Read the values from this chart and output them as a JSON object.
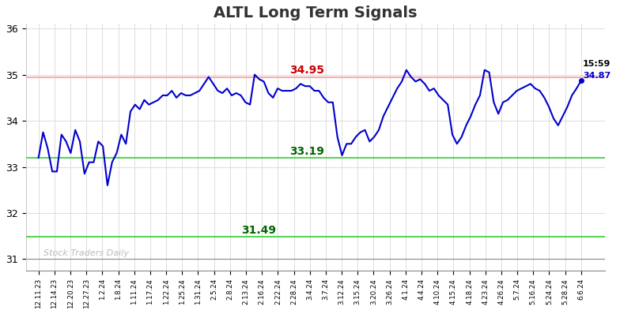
{
  "title": "ALTL Long Term Signals",
  "title_fontsize": 14,
  "title_color": "#333333",
  "background_color": "#ffffff",
  "line_color": "#0000cc",
  "line_width": 1.5,
  "hline_red_value": 34.95,
  "hline_red_color": "#ffaaaa",
  "hline_green1_value": 33.19,
  "hline_green1_color": "#33cc33",
  "hline_green2_value": 31.49,
  "hline_green2_color": "#33cc33",
  "watermark": "Stock Traders Daily",
  "watermark_color": "#bbbbbb",
  "label_34_95": "34.95",
  "label_33_19": "33.19",
  "label_31_49": "31.49",
  "label_red_color": "#cc0000",
  "label_green_color": "#006600",
  "end_label_time": "15:59",
  "end_label_price": "34.87",
  "end_label_color": "#0000cc",
  "end_label_time_color": "#000000",
  "ylim": [
    30.75,
    36.1
  ],
  "yticks": [
    31,
    32,
    33,
    34,
    35,
    36
  ],
  "x_labels": [
    "12.11.23",
    "12.14.23",
    "12.20.23",
    "12.27.23",
    "1.2.24",
    "1.8.24",
    "1.11.24",
    "1.17.24",
    "1.22.24",
    "1.25.24",
    "1.31.24",
    "2.5.24",
    "2.8.24",
    "2.13.24",
    "2.16.24",
    "2.22.24",
    "2.28.24",
    "3.4.24",
    "3.7.24",
    "3.12.24",
    "3.15.24",
    "3.20.24",
    "3.26.24",
    "4.1.24",
    "4.4.24",
    "4.10.24",
    "4.15.24",
    "4.18.24",
    "4.23.24",
    "4.26.24",
    "5.7.24",
    "5.16.24",
    "5.24.24",
    "5.28.24",
    "6.6.24"
  ],
  "y_values": [
    33.2,
    33.75,
    33.4,
    32.9,
    32.9,
    33.7,
    33.55,
    33.3,
    33.8,
    33.55,
    32.85,
    33.1,
    33.1,
    33.55,
    33.45,
    32.6,
    33.1,
    33.3,
    33.7,
    33.5,
    34.2,
    34.35,
    34.25,
    34.45,
    34.35,
    34.4,
    34.45,
    34.55,
    34.55,
    34.65,
    34.5,
    34.6,
    34.55,
    34.55,
    34.6,
    34.65,
    34.8,
    34.95,
    34.8,
    34.65,
    34.6,
    34.7,
    34.55,
    34.6,
    34.55,
    34.4,
    34.35,
    35.0,
    34.9,
    34.85,
    34.6,
    34.5,
    34.7,
    34.65,
    34.65,
    34.65,
    34.7,
    34.8,
    34.75,
    34.75,
    34.65,
    34.65,
    34.5,
    34.4,
    34.4,
    33.65,
    33.25,
    33.5,
    33.5,
    33.65,
    33.75,
    33.8,
    33.55,
    33.65,
    33.8,
    34.1,
    34.3,
    34.5,
    34.7,
    34.85,
    35.1,
    34.95,
    34.85,
    34.9,
    34.8,
    34.65,
    34.7,
    34.55,
    34.45,
    34.35,
    33.7,
    33.5,
    33.65,
    33.9,
    34.1,
    34.35,
    34.55,
    35.1,
    35.05,
    34.4,
    34.15,
    34.4,
    34.45,
    34.55,
    34.65,
    34.7,
    34.75,
    34.8,
    34.7,
    34.65,
    34.5,
    34.3,
    34.05,
    33.9,
    34.1,
    34.3,
    34.55,
    34.7,
    34.87
  ]
}
